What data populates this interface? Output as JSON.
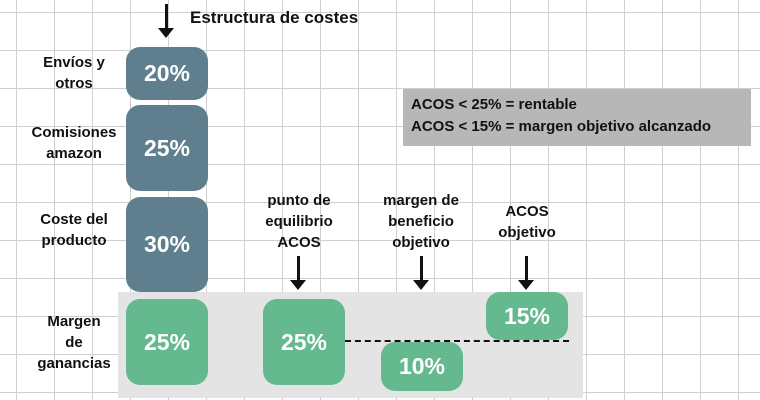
{
  "title": "Estructura de costes",
  "info": {
    "line1": "ACOS < 25% = rentable",
    "line2": "ACOS < 15% = margen objetivo alcanzado"
  },
  "rows": {
    "envios_label": "Envíos y\notros",
    "comisiones_label": "Comisiones\namazon",
    "coste_label": "Coste del\nproducto",
    "margen_label": "Margen\nde\nganancias"
  },
  "values": {
    "envios": "20%",
    "comisiones": "25%",
    "coste": "30%",
    "margen": "25%",
    "equilibrio": "25%",
    "beneficio": "10%",
    "objetivo": "15%"
  },
  "columns": {
    "equilibrio_label": "punto de\nequilibrio\nACOS",
    "beneficio_label": "margen de\nbeneficio\nobjetivo",
    "objetivo_label": "ACOS\nobjetivo"
  },
  "colors": {
    "cost_box": "#5f7f8f",
    "margin_box": "#64b98e",
    "band": "#e4e4e4",
    "info_box": "#b7b7b7"
  }
}
